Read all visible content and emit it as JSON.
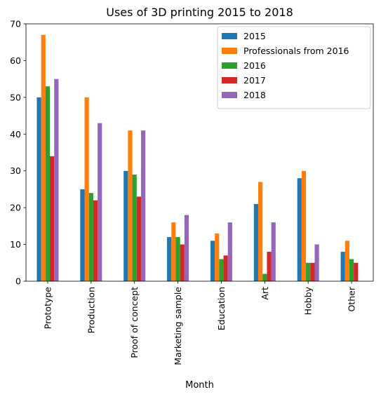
{
  "chart_data": {
    "type": "bar",
    "title": "Uses of 3D printing 2015 to 2018",
    "xlabel": "Month",
    "ylabel": "",
    "ylim": [
      0,
      70
    ],
    "yticks": [
      0,
      10,
      20,
      30,
      40,
      50,
      60,
      70
    ],
    "grid": false,
    "legend_position": "top-right",
    "categories": [
      "Prototype",
      "Production",
      "Proof of concept",
      "Marketing sample",
      "Education",
      "Art",
      "Hobby",
      "Other"
    ],
    "series": [
      {
        "name": "2015",
        "color": "#1f77b4",
        "values": [
          50,
          25,
          30,
          12,
          11,
          21,
          28,
          8
        ]
      },
      {
        "name": "Professionals from 2016",
        "color": "#ff7f0e",
        "values": [
          67,
          50,
          41,
          16,
          13,
          27,
          30,
          11
        ]
      },
      {
        "name": "2016",
        "color": "#2ca02c",
        "values": [
          53,
          24,
          29,
          12,
          6,
          2,
          5,
          6
        ]
      },
      {
        "name": "2017",
        "color": "#d62728",
        "values": [
          34,
          22,
          23,
          10,
          7,
          8,
          5,
          5
        ]
      },
      {
        "name": "2018",
        "color": "#9467bd",
        "values": [
          55,
          43,
          41,
          18,
          16,
          16,
          10,
          0
        ]
      }
    ]
  }
}
